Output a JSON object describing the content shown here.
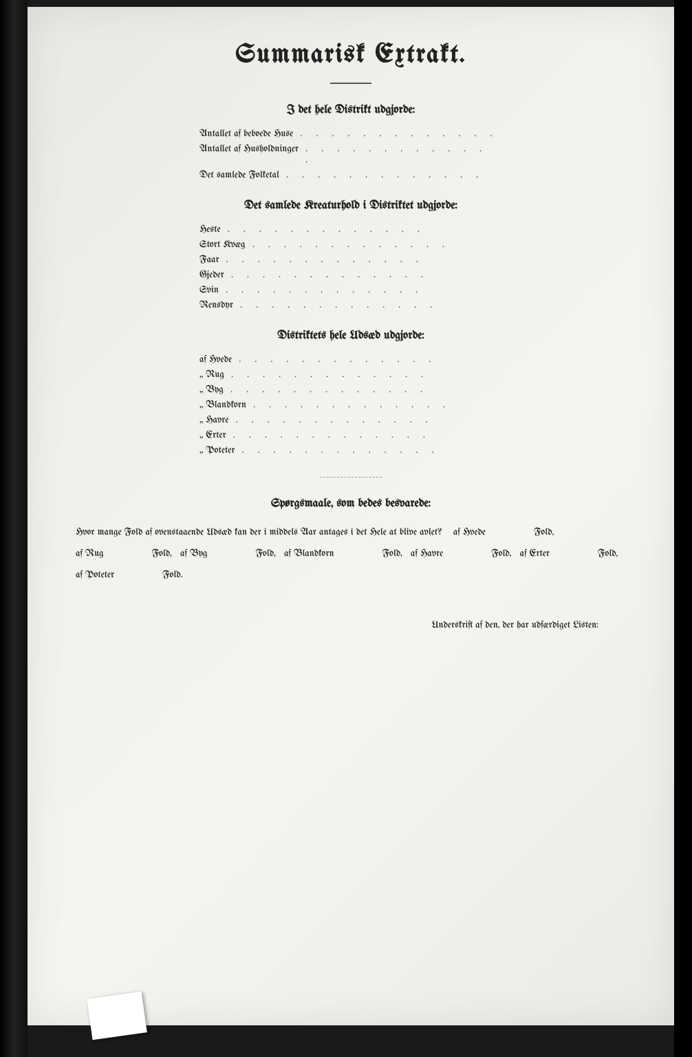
{
  "title": "Summarisk Extrakt.",
  "section1": {
    "heading": "I det hele Distrikt udgjorde:",
    "rows": [
      "Antallet af beboede Huse",
      "Antallet af Husholdninger",
      "Det samlede Folketal"
    ]
  },
  "section2": {
    "heading": "Det samlede Kreaturhold i Distriktet udgjorde:",
    "rows": [
      "Heste",
      "Stort Kvæg",
      "Faar",
      "Gjeder",
      "Svin",
      "Rensdyr"
    ]
  },
  "section3": {
    "heading": "Distriktets hele Udsæd udgjorde:",
    "rows": [
      "af Hvede",
      "„ Rug",
      "„ Byg",
      "„ Blandkorn",
      "„ Havre",
      "„ Erter",
      "„ Poteter"
    ]
  },
  "section4": {
    "heading": "Spørgsmaale, som bedes besvarede:",
    "intro": "Hvor mange Fold af ovenstaaende Udsæd kan der i middels Aar antages i det Hele at blive avlet?",
    "items": [
      {
        "crop": "af Hvede",
        "unit": "Fold,"
      },
      {
        "crop": "af Rug",
        "unit": "Fold,"
      },
      {
        "crop": "af Byg",
        "unit": "Fold,"
      },
      {
        "crop": "af Blandkorn",
        "unit": "Fold,"
      },
      {
        "crop": "af Havre",
        "unit": "Fold,"
      },
      {
        "crop": "af Erter",
        "unit": "Fold,"
      },
      {
        "crop": "af Poteter",
        "unit": "Fold."
      }
    ]
  },
  "signature": "Underskrift af den, der har udfærdiget Listen:",
  "dots": ". . . . . . . . . . . . ."
}
